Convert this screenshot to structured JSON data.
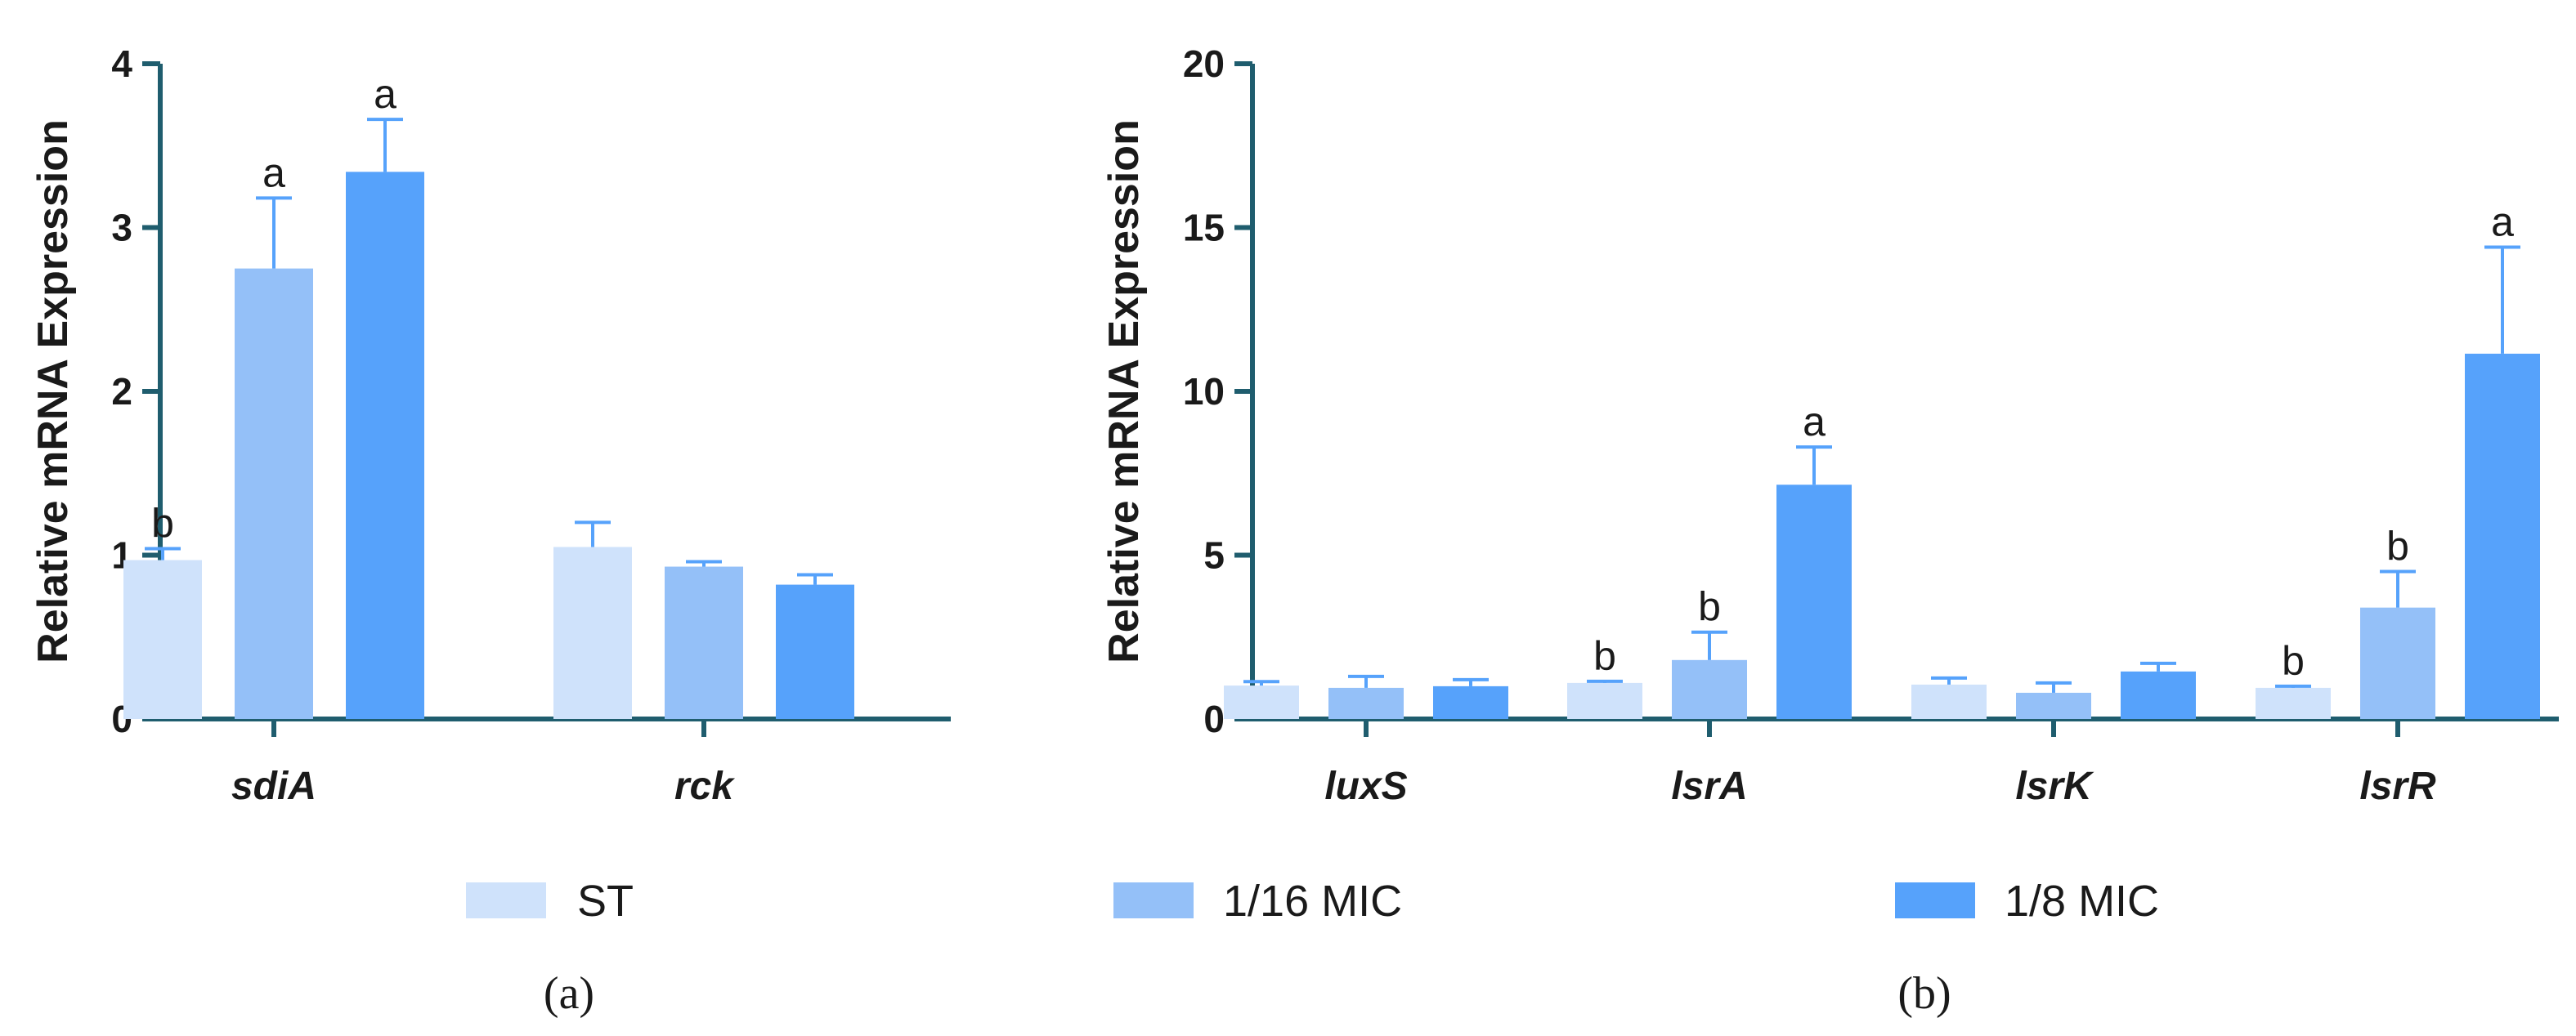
{
  "colors": {
    "axis": "#1f5d6e",
    "ST": "#cfe2fb",
    "1/16 MIC": "#94c0f8",
    "1/8 MIC": "#56a2fb",
    "error": "#56a2fb"
  },
  "legend": [
    "ST",
    "1/16 MIC",
    "1/8 MIC"
  ],
  "chart_data": [
    {
      "type": "bar",
      "panel_label": "(a)",
      "ylabel": "Relative mRNA Expression",
      "ylim": [
        0,
        4
      ],
      "yticks": [
        0,
        1,
        2,
        3,
        4
      ],
      "categories": [
        "sdiA",
        "rck"
      ],
      "series": [
        {
          "name": "ST",
          "values": [
            0.97,
            1.05
          ],
          "errors": [
            0.07,
            0.15
          ],
          "letters": [
            "b",
            ""
          ]
        },
        {
          "name": "1/16 MIC",
          "values": [
            2.75,
            0.93
          ],
          "errors": [
            0.43,
            0.03
          ],
          "letters": [
            "a",
            ""
          ]
        },
        {
          "name": "1/8 MIC",
          "values": [
            3.34,
            0.82
          ],
          "errors": [
            0.32,
            0.06
          ],
          "letters": [
            "a",
            ""
          ]
        }
      ]
    },
    {
      "type": "bar",
      "panel_label": "(b)",
      "ylabel": "Relative mRNA Expression",
      "ylim": [
        0,
        20
      ],
      "yticks": [
        0,
        5,
        10,
        15,
        20
      ],
      "categories": [
        "luxS",
        "lsrA",
        "lsrK",
        "lsrR"
      ],
      "series": [
        {
          "name": "ST",
          "values": [
            1.02,
            1.1,
            1.05,
            0.95
          ],
          "errors": [
            0.12,
            0.05,
            0.2,
            0.05
          ],
          "letters": [
            "",
            "b",
            "",
            "b"
          ]
        },
        {
          "name": "1/16 MIC",
          "values": [
            0.95,
            1.8,
            0.8,
            3.4
          ],
          "errors": [
            0.35,
            0.85,
            0.3,
            1.1
          ],
          "letters": [
            "",
            "b",
            "",
            "b"
          ]
        },
        {
          "name": "1/8 MIC",
          "values": [
            1.0,
            7.15,
            1.45,
            11.15
          ],
          "errors": [
            0.2,
            1.15,
            0.25,
            3.25
          ],
          "letters": [
            "",
            "a",
            "",
            "a"
          ]
        }
      ]
    }
  ]
}
